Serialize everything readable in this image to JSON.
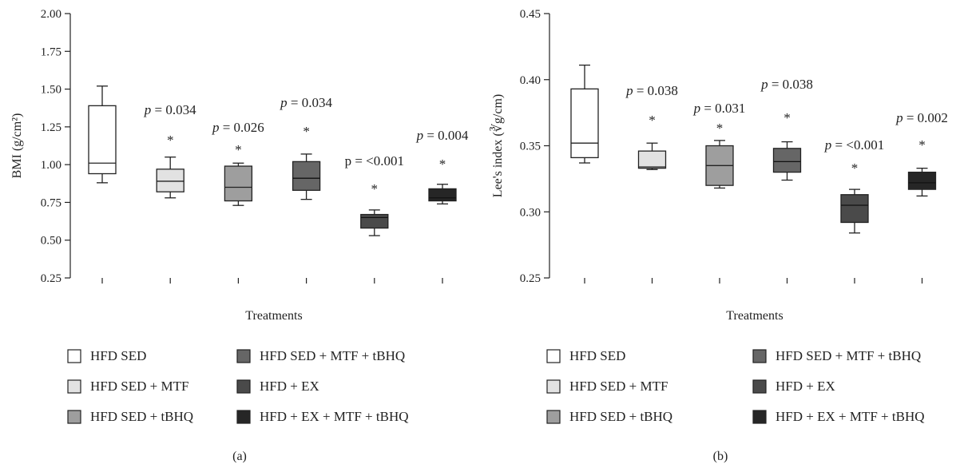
{
  "chart_data": [
    {
      "type": "box",
      "panel": "(a)",
      "xlabel": "Treatments",
      "ylabel": "BMI (g/cm²)",
      "ylim": [
        0.25,
        2.0
      ],
      "yticks": [
        "0.25",
        "0.50",
        "0.75",
        "1.00",
        "1.25",
        "1.50",
        "1.75",
        "2.00"
      ],
      "series": [
        {
          "name": "HFD SED",
          "color": "#ffffff",
          "min": 0.88,
          "q1": 0.94,
          "median": 1.01,
          "q3": 1.39,
          "max": 1.52,
          "annotation": "",
          "sig": ""
        },
        {
          "name": "HFD SED + MTF",
          "color": "#e2e2e2",
          "min": 0.78,
          "q1": 0.82,
          "median": 0.89,
          "q3": 0.97,
          "max": 1.05,
          "annotation": "= 0.034",
          "annotation_prefix": "p",
          "sig": "*"
        },
        {
          "name": "HFD SED + tBHQ",
          "color": "#9e9e9e",
          "min": 0.73,
          "q1": 0.76,
          "median": 0.85,
          "q3": 0.99,
          "max": 1.01,
          "annotation": "= 0.026",
          "annotation_prefix": "p",
          "sig": "*"
        },
        {
          "name": "HFD SED + MTF + tBHQ",
          "color": "#666666",
          "min": 0.77,
          "q1": 0.83,
          "median": 0.91,
          "q3": 1.02,
          "max": 1.07,
          "annotation": "= 0.034",
          "annotation_prefix": "p",
          "sig": "*"
        },
        {
          "name": "HFD + EX",
          "color": "#4a4a4a",
          "min": 0.53,
          "q1": 0.58,
          "median": 0.65,
          "q3": 0.67,
          "max": 0.7,
          "annotation": "p = <0.001",
          "annotation_prefix": "",
          "sig": "*"
        },
        {
          "name": "HFD + EX + MTF + tBHQ",
          "color": "#262626",
          "min": 0.74,
          "q1": 0.76,
          "median": 0.78,
          "q3": 0.84,
          "max": 0.87,
          "annotation": "= 0.004",
          "annotation_prefix": "p",
          "sig": "*"
        }
      ]
    },
    {
      "type": "box",
      "panel": "(b)",
      "xlabel": "Treatments",
      "ylabel": "Lee's index (∛g/cm)",
      "ylim": [
        0.25,
        0.45
      ],
      "yticks": [
        "0.25",
        "0.30",
        "0.35",
        "0.40",
        "0.45"
      ],
      "series": [
        {
          "name": "HFD SED",
          "color": "#ffffff",
          "min": 0.337,
          "q1": 0.341,
          "median": 0.352,
          "q3": 0.393,
          "max": 0.411,
          "annotation": "",
          "sig": ""
        },
        {
          "name": "HFD SED + MTF",
          "color": "#e2e2e2",
          "min": 0.332,
          "q1": 0.333,
          "median": 0.334,
          "q3": 0.346,
          "max": 0.352,
          "annotation": "= 0.038",
          "annotation_prefix": "p",
          "sig": "*"
        },
        {
          "name": "HFD SED + tBHQ",
          "color": "#9e9e9e",
          "min": 0.318,
          "q1": 0.32,
          "median": 0.335,
          "q3": 0.35,
          "max": 0.354,
          "annotation": "= 0.031",
          "annotation_prefix": "p",
          "sig": "*"
        },
        {
          "name": "HFD SED + MTF + tBHQ",
          "color": "#666666",
          "min": 0.324,
          "q1": 0.33,
          "median": 0.338,
          "q3": 0.348,
          "max": 0.353,
          "annotation": "= 0.038",
          "annotation_prefix": "p",
          "sig": "*"
        },
        {
          "name": "HFD + EX",
          "color": "#4a4a4a",
          "min": 0.284,
          "q1": 0.292,
          "median": 0.305,
          "q3": 0.313,
          "max": 0.317,
          "annotation": "= <0.001",
          "annotation_prefix": "p",
          "sig": "*"
        },
        {
          "name": "HFD + EX + MTF + tBHQ",
          "color": "#262626",
          "min": 0.312,
          "q1": 0.317,
          "median": 0.322,
          "q3": 0.33,
          "max": 0.333,
          "annotation": "= 0.002",
          "annotation_prefix": "p",
          "sig": "*"
        }
      ]
    }
  ],
  "legend": {
    "items": [
      {
        "label": "HFD SED",
        "color": "#ffffff"
      },
      {
        "label": "HFD SED + MTF",
        "color": "#e2e2e2"
      },
      {
        "label": "HFD SED + tBHQ",
        "color": "#9e9e9e"
      },
      {
        "label": "HFD SED + MTF + tBHQ",
        "color": "#666666"
      },
      {
        "label": "HFD + EX",
        "color": "#4a4a4a"
      },
      {
        "label": "HFD + EX + MTF + tBHQ",
        "color": "#262626"
      }
    ]
  }
}
